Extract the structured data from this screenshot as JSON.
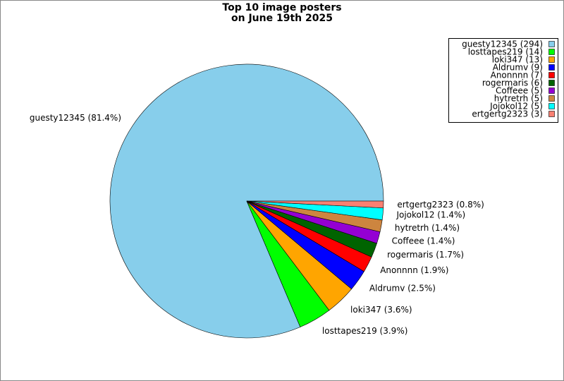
{
  "chart_data": {
    "type": "pie",
    "title": "Top 10 image posters",
    "subtitle": "on June 19th 2025",
    "categories": [
      "guesty12345",
      "losttapes219",
      "loki347",
      "Aldrumv",
      "Anonnnn",
      "rogermaris",
      "Coffeee",
      "hytretrh",
      "Jojokol12",
      "ertgertg2323"
    ],
    "values": [
      81.4,
      3.9,
      3.6,
      2.5,
      1.9,
      1.7,
      1.4,
      1.4,
      1.4,
      0.8
    ],
    "value_labels": [
      "guesty12345 (81.4%)",
      "losttapes219 (3.9%)",
      "loki347 (3.6%)",
      "Aldrumv (2.5%)",
      "Anonnnn (1.9%)",
      "rogermaris (1.7%)",
      "Coffeee (1.4%)",
      "hytretrh (1.4%)",
      "Jojokol12 (1.4%)",
      "ertgertg2323 (0.8%)"
    ],
    "legend_labels": [
      "guesty12345 (294)",
      "losttapes219 (14)",
      "loki347 (13)",
      "Aldrumv (9)",
      "Anonnnn (7)",
      "rogermaris (6)",
      "Coffeee (5)",
      "hytretrh (5)",
      "Jojokol12 (5)",
      "ertgertg2323 (3)"
    ],
    "colors": [
      "#87ceeb",
      "#00ff00",
      "#ffa500",
      "#0000ff",
      "#ff0000",
      "#006400",
      "#9400d3",
      "#cd853f",
      "#00ffff",
      "#fa8072"
    ],
    "legend": "upper right"
  }
}
